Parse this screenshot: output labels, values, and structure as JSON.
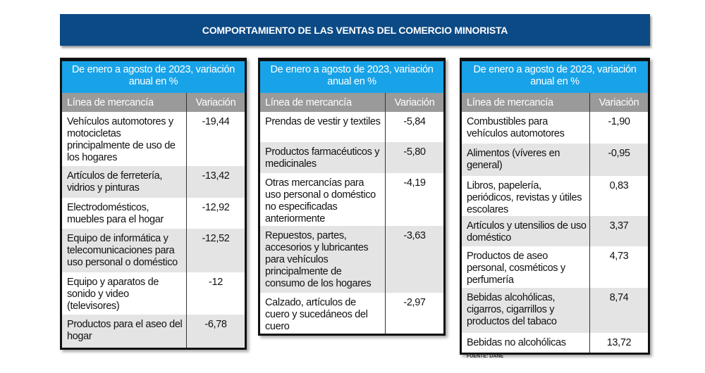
{
  "title": "COMPORTAMIENTO DE LAS VENTAS DEL COMERCIO MINORISTA",
  "panels": [
    {
      "header": "De enero a agosto de 2023, variación anual en %",
      "col1": "Línea de mercancía",
      "col2": "Variación",
      "rows": [
        {
          "item": "Vehículos automotores y motocicletas principalmente de uso de los hogares",
          "value": "-19,44"
        },
        {
          "item": "Artículos de ferretería, vidrios y pinturas",
          "value": "-13,42"
        },
        {
          "item": "Electrodomésticos, muebles para el hogar",
          "value": "-12,92"
        },
        {
          "item": "Equipo de informática y telecomunicaciones para uso personal o doméstico",
          "value": "-12,52"
        },
        {
          "item": "Equipo y aparatos de sonido y video (televisores)",
          "value": "-12"
        },
        {
          "item": "Productos para el aseo del hogar",
          "value": "-6,78"
        }
      ]
    },
    {
      "header": "De enero a agosto de 2023, variación anual en %",
      "col1": "Línea de mercancía",
      "col2": "Variación",
      "rows": [
        {
          "item": "Prendas de vestir y textiles",
          "value": "-5,84"
        },
        {
          "item": "Productos farmacéuticos y medicinales",
          "value": "-5,80"
        },
        {
          "item": "Otras mercancías para uso personal o doméstico no especificadas anteriormente",
          "value": "-4,19"
        },
        {
          "item": "Repuestos, partes, accesorios y lubricantes para vehículos principalmente de consumo de los hogares",
          "value": "-3,63"
        },
        {
          "item": "Calzado, artículos de cuero y sucedáneos del cuero",
          "value": "-2,97"
        }
      ]
    },
    {
      "header": "De enero a agosto de 2023, variación anual en %",
      "col1": "Línea de mercancía",
      "col2": "Variación",
      "rows": [
        {
          "item": "Combustibles para vehículos automotores",
          "value": "-1,90"
        },
        {
          "item": "Alimentos (víveres en general)",
          "value": "-0,95"
        },
        {
          "item": "Libros, papelería, periódicos, revistas y útiles escolares",
          "value": "0,83"
        },
        {
          "item": "Artículos y utensilios de uso doméstico",
          "value": "3,37"
        },
        {
          "item": "Productos de aseo personal, cosméticos y perfumería",
          "value": "4,73"
        },
        {
          "item": "Bebidas alcohólicas, cigarros, cigarrillos y productos del tabaco",
          "value": "8,74"
        },
        {
          "item": "Bebidas no alcohólicas",
          "value": "13,72"
        }
      ]
    }
  ],
  "source": "FUENTE: DANE"
}
